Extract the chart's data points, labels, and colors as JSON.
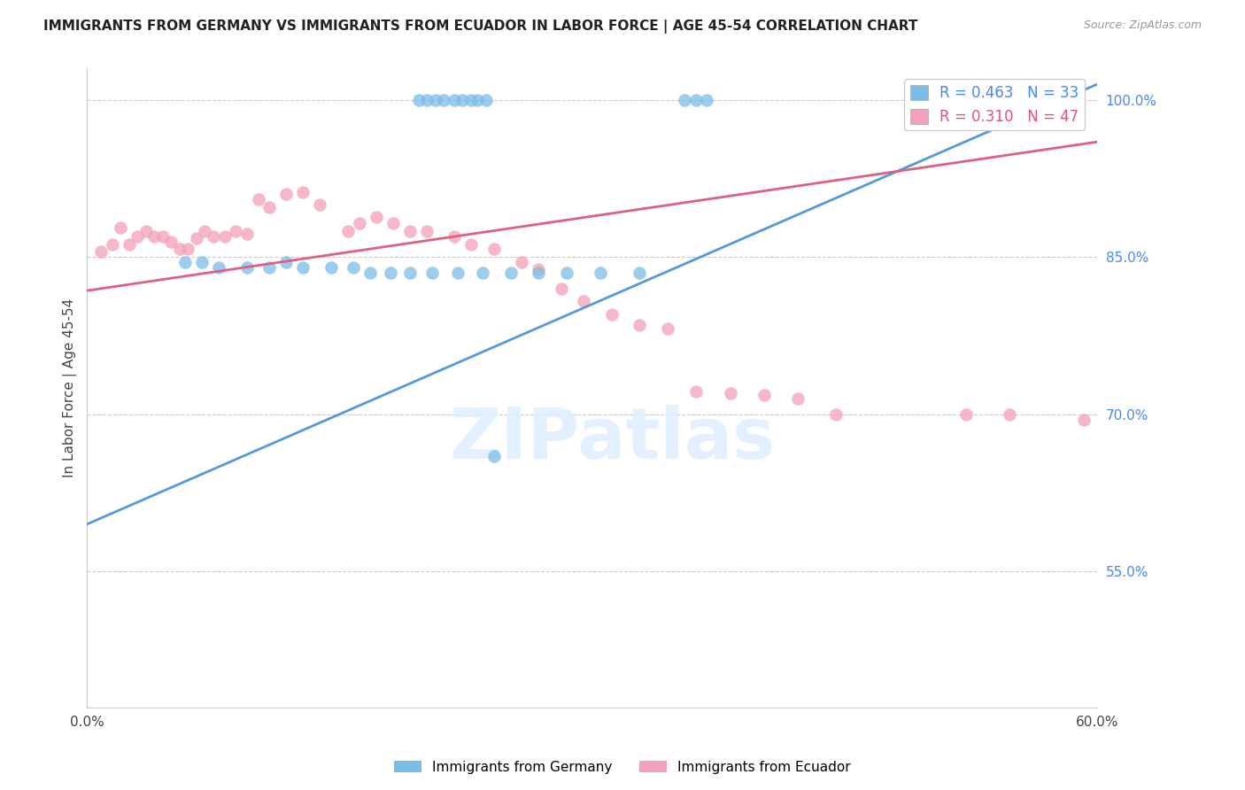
{
  "title": "IMMIGRANTS FROM GERMANY VS IMMIGRANTS FROM ECUADOR IN LABOR FORCE | AGE 45-54 CORRELATION CHART",
  "source": "Source: ZipAtlas.com",
  "ylabel": "In Labor Force | Age 45-54",
  "xlim": [
    0.0,
    0.6
  ],
  "ylim": [
    0.42,
    1.03
  ],
  "xticks": [
    0.0,
    0.1,
    0.2,
    0.3,
    0.4,
    0.5,
    0.6
  ],
  "xticklabels": [
    "0.0%",
    "",
    "",
    "",
    "",
    "",
    "60.0%"
  ],
  "yticks_right": [
    0.55,
    0.7,
    0.85,
    1.0
  ],
  "ytick_labels_right": [
    "55.0%",
    "70.0%",
    "85.0%",
    "100.0%"
  ],
  "blue_color": "#7bbde8",
  "pink_color": "#f4a0b8",
  "blue_line_color": "#5599dd",
  "pink_line_color": "#e06080",
  "legend_blue_R": "R = 0.463",
  "legend_blue_N": "N = 33",
  "legend_pink_R": "R = 0.310",
  "legend_pink_N": "N = 47",
  "blue_line_x0": 0.0,
  "blue_line_y0": 0.595,
  "blue_line_x1": 0.6,
  "blue_line_y1": 1.015,
  "pink_line_x0": 0.0,
  "pink_line_y0": 0.818,
  "pink_line_x1": 0.6,
  "pink_line_y1": 0.96,
  "blue_x": [
    0.197,
    0.202,
    0.207,
    0.212,
    0.218,
    0.223,
    0.228,
    0.232,
    0.237,
    0.355,
    0.362,
    0.368,
    0.058,
    0.068,
    0.078,
    0.095,
    0.108,
    0.118,
    0.128,
    0.145,
    0.158,
    0.168,
    0.18,
    0.192,
    0.205,
    0.22,
    0.235,
    0.252,
    0.268,
    0.285,
    0.305,
    0.328,
    0.242
  ],
  "blue_y": [
    1.0,
    1.0,
    1.0,
    1.0,
    1.0,
    1.0,
    1.0,
    1.0,
    1.0,
    1.0,
    1.0,
    1.0,
    0.845,
    0.845,
    0.84,
    0.84,
    0.84,
    0.845,
    0.84,
    0.84,
    0.84,
    0.835,
    0.835,
    0.835,
    0.835,
    0.835,
    0.835,
    0.835,
    0.835,
    0.835,
    0.835,
    0.835,
    0.66
  ],
  "pink_x": [
    0.008,
    0.015,
    0.02,
    0.025,
    0.03,
    0.035,
    0.04,
    0.045,
    0.05,
    0.055,
    0.06,
    0.065,
    0.07,
    0.075,
    0.082,
    0.088,
    0.095,
    0.102,
    0.108,
    0.118,
    0.128,
    0.138,
    0.155,
    0.162,
    0.172,
    0.182,
    0.192,
    0.202,
    0.218,
    0.228,
    0.242,
    0.258,
    0.268,
    0.282,
    0.295,
    0.312,
    0.328,
    0.345,
    0.362,
    0.382,
    0.402,
    0.422,
    0.445,
    0.505,
    0.522,
    0.548,
    0.592
  ],
  "pink_y": [
    0.855,
    0.862,
    0.878,
    0.862,
    0.87,
    0.875,
    0.87,
    0.87,
    0.865,
    0.858,
    0.858,
    0.868,
    0.875,
    0.87,
    0.87,
    0.875,
    0.872,
    0.905,
    0.898,
    0.91,
    0.912,
    0.9,
    0.875,
    0.882,
    0.888,
    0.882,
    0.875,
    0.875,
    0.87,
    0.862,
    0.858,
    0.845,
    0.838,
    0.82,
    0.808,
    0.795,
    0.785,
    0.782,
    0.722,
    0.72,
    0.718,
    0.715,
    0.7,
    1.0,
    0.7,
    0.7,
    0.695
  ]
}
